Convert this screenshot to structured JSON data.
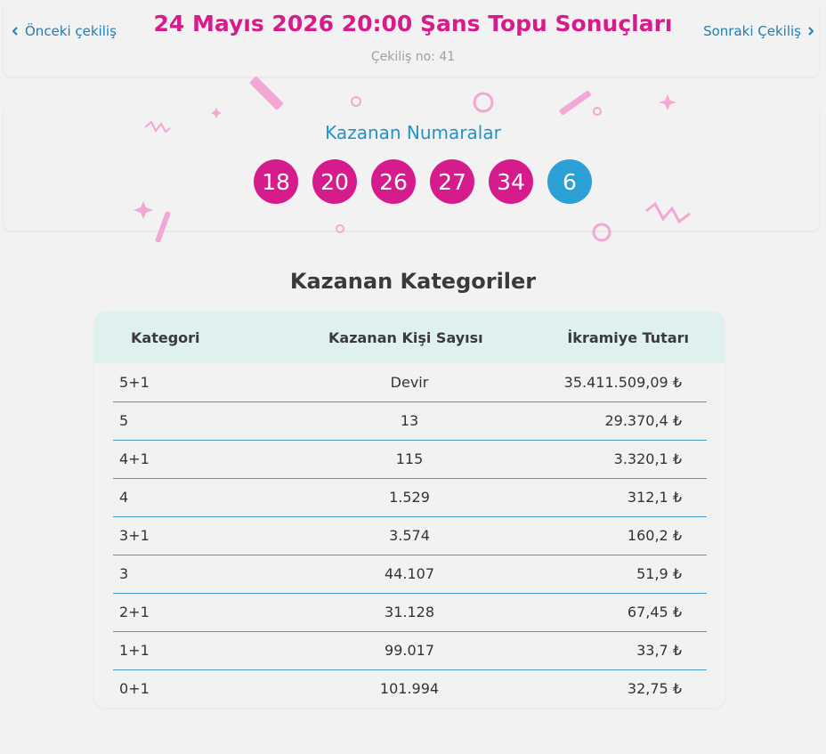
{
  "header": {
    "prev_label": "Önceki çekiliş",
    "next_label": "Sonraki Çekiliş",
    "title": "24 Mayıs 2026 20:00 Şans Topu Sonuçları",
    "draw_number": "Çekiliş no: 41"
  },
  "winning": {
    "title": "Kazanan Numaralar",
    "numbers": [
      "18",
      "20",
      "26",
      "27",
      "34"
    ],
    "bonus": "6"
  },
  "categories": {
    "title": "Kazanan Kategoriler",
    "columns": [
      "Kategori",
      "Kazanan Kişi Sayısı",
      "İkramiye Tutarı"
    ],
    "rows": [
      [
        "5+1",
        "Devir",
        "35.411.509,09 ₺"
      ],
      [
        "5",
        "13",
        "29.370,4 ₺"
      ],
      [
        "4+1",
        "115",
        "3.320,1 ₺"
      ],
      [
        "4",
        "1.529",
        "312,1 ₺"
      ],
      [
        "3+1",
        "3.574",
        "160,2 ₺"
      ],
      [
        "3",
        "44.107",
        "51,9 ₺"
      ],
      [
        "2+1",
        "31.128",
        "67,45 ₺"
      ],
      [
        "1+1",
        "99.017",
        "33,7 ₺"
      ],
      [
        "0+1",
        "101.994",
        "32,75 ₺"
      ]
    ]
  },
  "colors": {
    "accent_pink": "#d61c8c",
    "accent_blue": "#2aa0d4",
    "link_blue": "#1f7fb5",
    "table_header_bg": "#def1ef"
  }
}
